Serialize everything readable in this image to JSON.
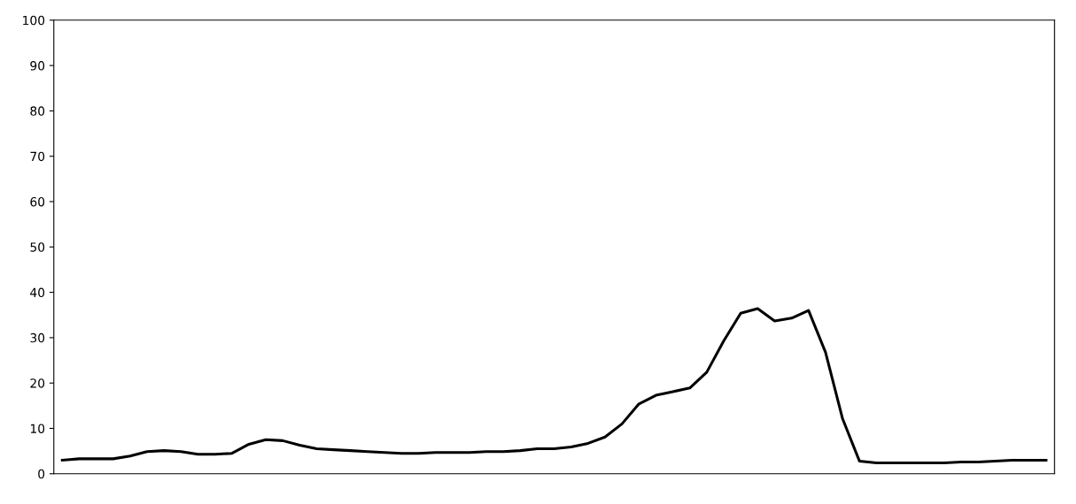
{
  "chart_data": {
    "type": "line",
    "categories": [
      null,
      null,
      null,
      null,
      null,
      null,
      null,
      null,
      null,
      null,
      null,
      null,
      null,
      null,
      null,
      null,
      null,
      null,
      null,
      null,
      null,
      null,
      null,
      null,
      null,
      null,
      null,
      null,
      null,
      null,
      null,
      null,
      null,
      null,
      null,
      null,
      null,
      null,
      null,
      null,
      null,
      null,
      null,
      null,
      null,
      null,
      null,
      null,
      null,
      null,
      null,
      null,
      null,
      null,
      null,
      null,
      null,
      null,
      null
    ],
    "series": [
      {
        "color": "#000000",
        "values": [
          3.0,
          3.3,
          3.3,
          3.3,
          3.9,
          4.9,
          5.1,
          4.9,
          4.3,
          4.3,
          4.5,
          6.5,
          7.5,
          7.3,
          6.3,
          5.5,
          5.3,
          5.1,
          4.9,
          4.7,
          4.5,
          4.5,
          4.7,
          4.7,
          4.7,
          4.9,
          4.9,
          5.1,
          5.5,
          5.5,
          5.9,
          6.7,
          8.1,
          11.0,
          15.4,
          17.3,
          18.1,
          18.9,
          22.4,
          29.3,
          35.4,
          36.4,
          33.7,
          34.3,
          36.0,
          26.8,
          12.2,
          2.8,
          2.4,
          2.4,
          2.4,
          2.4,
          2.4,
          2.6,
          2.6,
          2.8,
          3.0,
          3.0,
          3.0
        ]
      }
    ],
    "ylim": [
      0,
      100
    ],
    "yticks": [
      0,
      10,
      20,
      30,
      40,
      50,
      60,
      70,
      80,
      90,
      100
    ],
    "marker": "none",
    "line_style": "solid",
    "grid": false,
    "legend": false
  }
}
